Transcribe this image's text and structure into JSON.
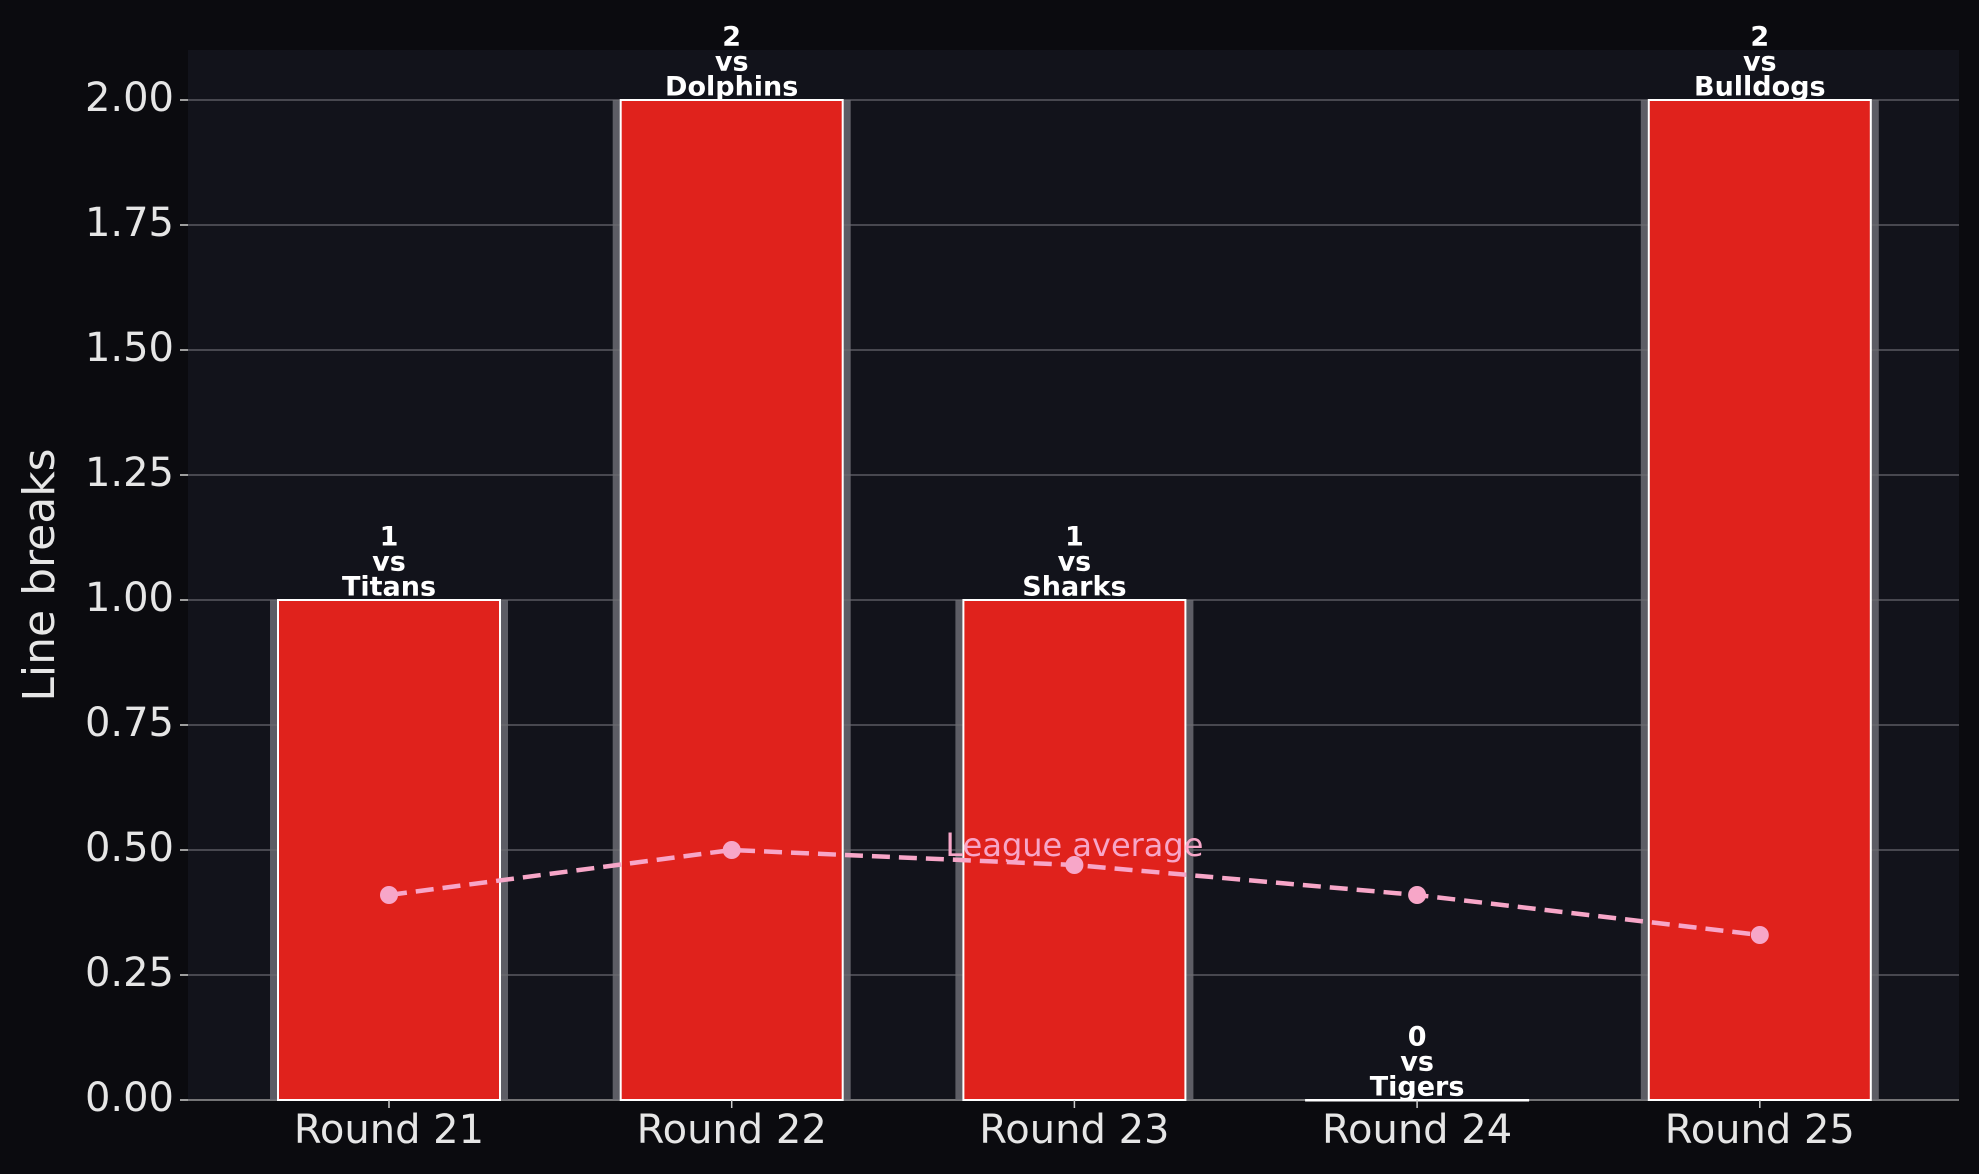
{
  "chart_data": {
    "type": "bar",
    "ylabel": "Line breaks",
    "categories": [
      "Round 21",
      "Round 22",
      "Round 23",
      "Round 24",
      "Round 25"
    ],
    "connector": "vs",
    "opponents": [
      "Titans",
      "Dolphins",
      "Sharks",
      "Tigers",
      "Bulldogs"
    ],
    "series": [
      {
        "name": "Line breaks",
        "type": "bar",
        "color": "#e0221c",
        "values": [
          1,
          2,
          1,
          0,
          2
        ]
      },
      {
        "name": "League average",
        "type": "line",
        "color": "#f7a6c8",
        "values": [
          0.41,
          0.5,
          0.47,
          0.41,
          0.33
        ]
      }
    ],
    "ylim": [
      0,
      2.1
    ],
    "yticks": [
      {
        "value": 0,
        "label": "0.00"
      },
      {
        "value": 0.25,
        "label": "0.25"
      },
      {
        "value": 0.5,
        "label": "0.50"
      },
      {
        "value": 0.75,
        "label": "0.75"
      },
      {
        "value": 1,
        "label": "1.00"
      },
      {
        "value": 1.25,
        "label": "1.25"
      },
      {
        "value": 1.5,
        "label": "1.50"
      },
      {
        "value": 1.75,
        "label": "1.75"
      },
      {
        "value": 2,
        "label": "2.00"
      }
    ],
    "grid": true
  }
}
